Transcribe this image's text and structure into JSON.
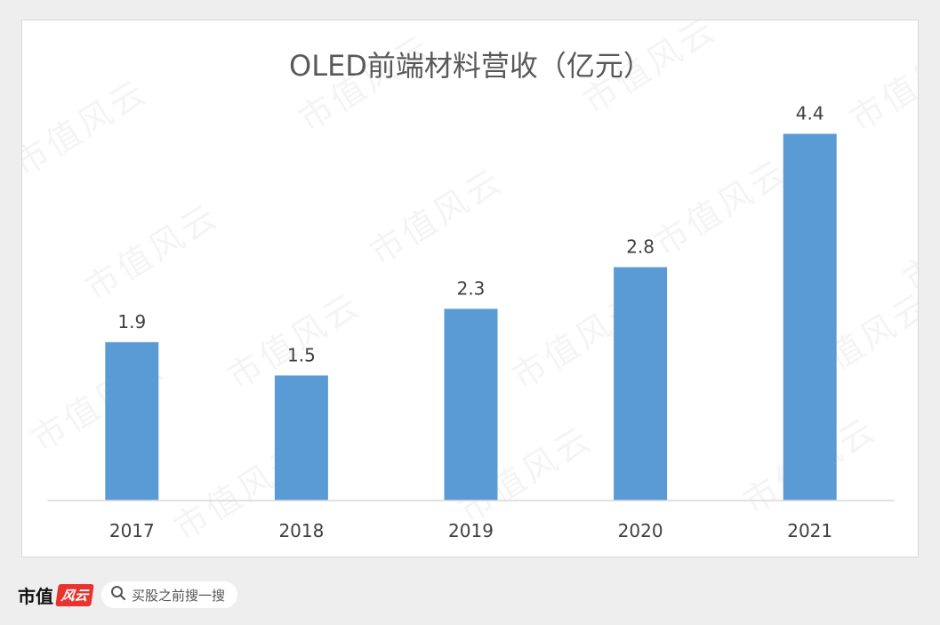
{
  "chart_data": {
    "type": "bar",
    "title": "OLED前端材料营收（亿元）",
    "categories": [
      "2017",
      "2018",
      "2019",
      "2020",
      "2021"
    ],
    "values": [
      1.9,
      1.5,
      2.3,
      2.8,
      4.4
    ],
    "data_labels": [
      "1.9",
      "1.5",
      "2.3",
      "2.8",
      "4.4"
    ],
    "xlabel": "",
    "ylabel": "",
    "ylim": [
      0,
      4.8
    ],
    "grid": false,
    "legend": "none",
    "bar_color": "#5b9bd5"
  },
  "footer": {
    "brand_text": "市值",
    "brand_badge": "风云",
    "search_icon": "search-icon",
    "search_text": "买股之前搜一搜"
  },
  "watermark_text": "市值风云"
}
